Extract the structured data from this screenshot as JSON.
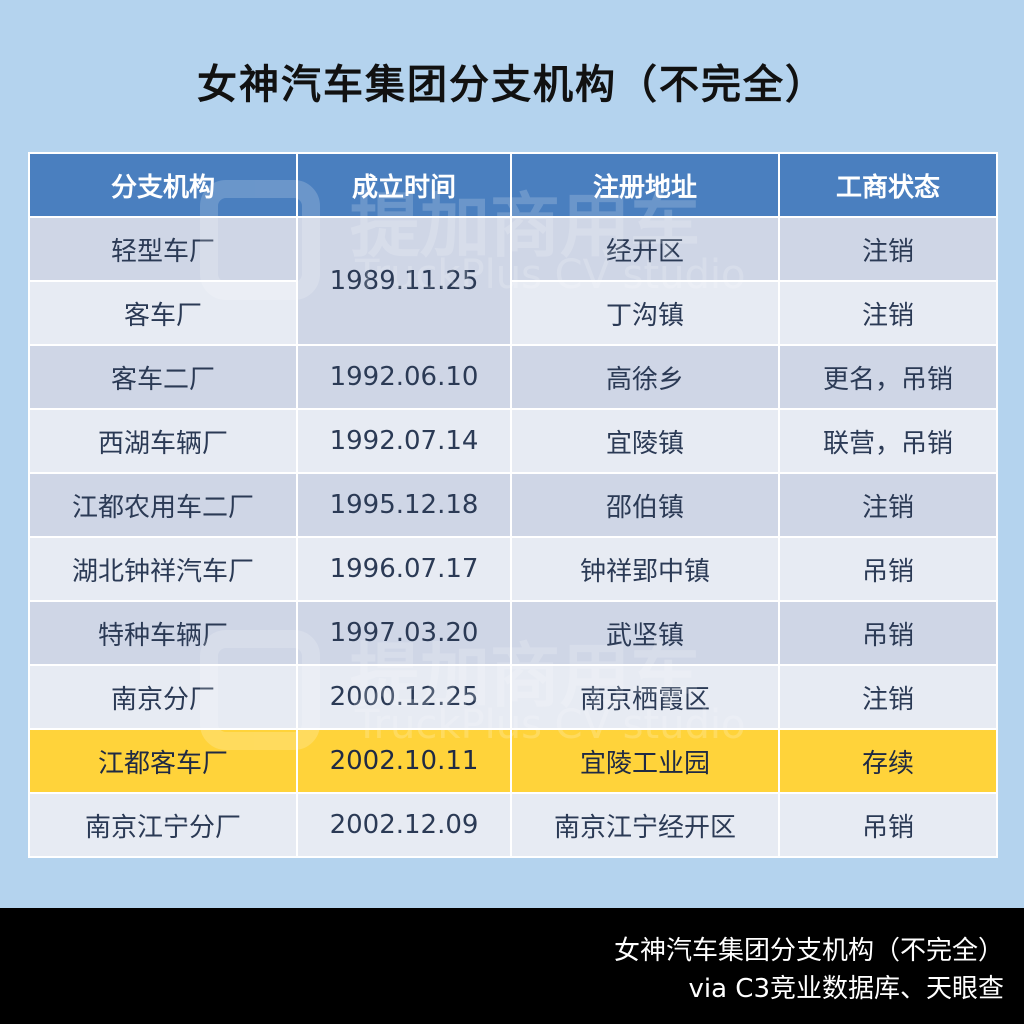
{
  "title": "女神汽车集团分支机构（不完全）",
  "table": {
    "headers": [
      "分支机构",
      "成立时间",
      "注册地址",
      "工商状态"
    ],
    "rows": [
      {
        "name": "轻型车厂",
        "date": "1989.11.25",
        "address": "经开区",
        "status": "注销"
      },
      {
        "name": "客车厂",
        "date": "",
        "address": "丁沟镇",
        "status": "注销"
      },
      {
        "name": "客车二厂",
        "date": "1992.06.10",
        "address": "高徐乡",
        "status": "更名，吊销"
      },
      {
        "name": "西湖车辆厂",
        "date": "1992.07.14",
        "address": "宜陵镇",
        "status": "联营，吊销"
      },
      {
        "name": "江都农用车二厂",
        "date": "1995.12.18",
        "address": "邵伯镇",
        "status": "注销"
      },
      {
        "name": "湖北钟祥汽车厂",
        "date": "1996.07.17",
        "address": "钟祥郢中镇",
        "status": "吊销"
      },
      {
        "name": "特种车辆厂",
        "date": "1997.03.20",
        "address": "武坚镇",
        "status": "吊销"
      },
      {
        "name": "南京分厂",
        "date": "2000.12.25",
        "address": "南京栖霞区",
        "status": "注销"
      },
      {
        "name": "江都客车厂",
        "date": "2002.10.11",
        "address": "宜陵工业园",
        "status": "存续"
      },
      {
        "name": "南京江宁分厂",
        "date": "2002.12.09",
        "address": "南京江宁经开区",
        "status": "吊销"
      }
    ]
  },
  "watermark": {
    "brand": "提加商用车",
    "sub": "TruckPlus CV studio"
  },
  "footer": {
    "line1": "女神汽车集团分支机构（不完全）",
    "line2": "via  C3竞业数据库、天眼查"
  },
  "colors": {
    "header": "#4a7fbf",
    "highlight": "#ffd33a",
    "background": "#b4d3ee"
  }
}
